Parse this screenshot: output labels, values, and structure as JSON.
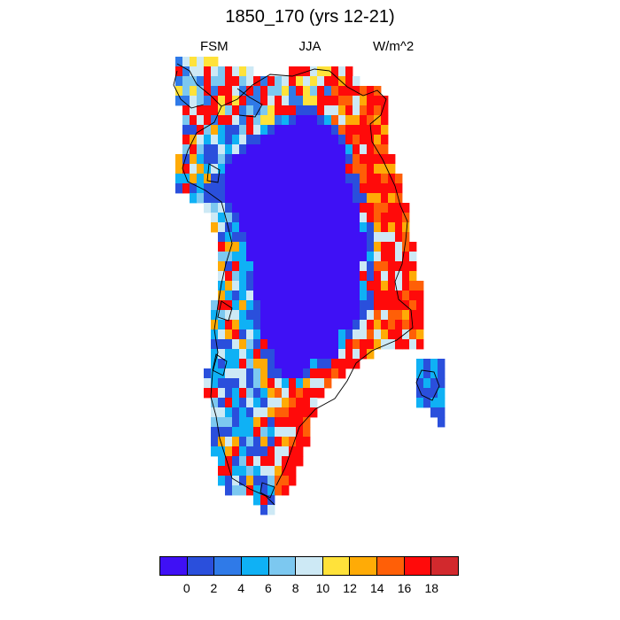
{
  "header": {
    "title": "1850_170 (yrs 12-21)",
    "left_label": "FSM",
    "center_label": "JJA",
    "right_label": "W/m^2"
  },
  "colorbar": {
    "colors": [
      "#3f10f5",
      "#2a4fdc",
      "#2f7ae8",
      "#0fb1f5",
      "#7cc8f0",
      "#cde9f5",
      "#ffe23a",
      "#ffab06",
      "#ff5f07",
      "#ff0a0a",
      "#d2292d"
    ],
    "labels": [
      "0",
      "2",
      "4",
      "6",
      "8",
      "10",
      "12",
      "14",
      "16",
      "18"
    ]
  },
  "map": {
    "region": "Greenland",
    "variable": "FSM",
    "season": "JJA",
    "units": "W/m^2",
    "interior_value_range": [
      0,
      2
    ],
    "coastal_east_value_range": [
      14,
      20
    ],
    "coastal_west_value_range": [
      4,
      18
    ]
  }
}
